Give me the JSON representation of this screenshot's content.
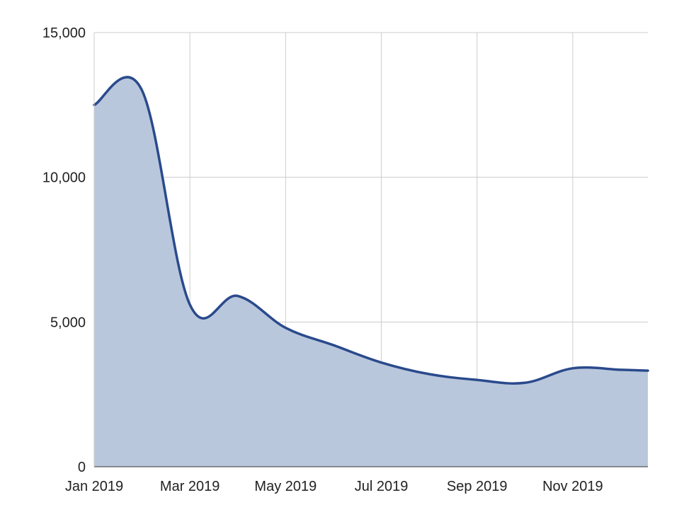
{
  "chart_data": {
    "type": "area",
    "title": "",
    "xlabel": "",
    "ylabel": "",
    "x": [
      "2019-01",
      "2019-02",
      "2019-03",
      "2019-04",
      "2019-05",
      "2019-06",
      "2019-07",
      "2019-08",
      "2019-09",
      "2019-10",
      "2019-11",
      "2019-12"
    ],
    "series": [
      {
        "values": [
          12500,
          13000,
          5600,
          5900,
          4800,
          4200,
          3600,
          3200,
          3000,
          2900,
          3400,
          3350
        ]
      }
    ],
    "x_ticks": [
      "Jan 2019",
      "Mar 2019",
      "May 2019",
      "Jul 2019",
      "Sep 2019",
      "Nov 2019"
    ],
    "y_ticks": [
      "0",
      "5,000",
      "10,000",
      "15,000"
    ],
    "y_tick_values": [
      0,
      5000,
      10000,
      15000
    ],
    "ylim": [
      0,
      15000
    ],
    "grid": true,
    "legend": "none",
    "colors": {
      "line": "#2a4a8c",
      "fill": "#b9c7dc",
      "grid": "#cccccc"
    }
  }
}
